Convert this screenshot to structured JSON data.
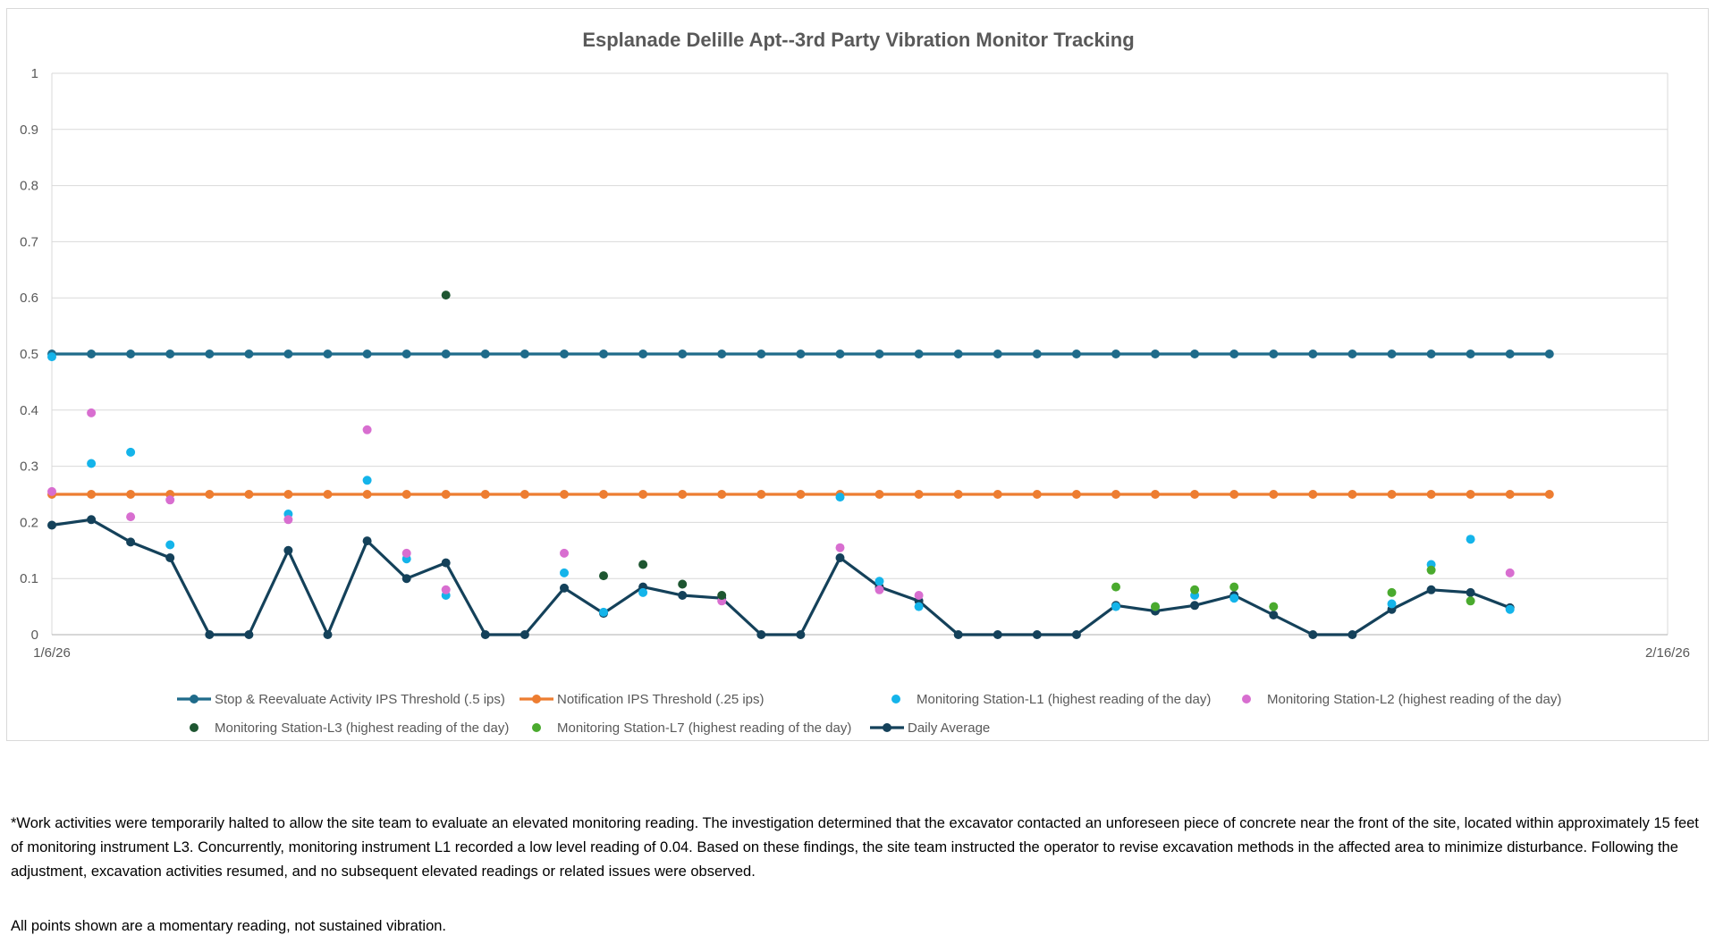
{
  "chart_data": {
    "type": "line",
    "title": "Esplanade Delille Apt--3rd Party Vibration Monitor Tracking",
    "xlabel": "",
    "ylabel": "",
    "ylim": [
      0,
      1
    ],
    "yticks": [
      "0",
      "0.1",
      "0.2",
      "0.3",
      "0.4",
      "0.5",
      "0.6",
      "0.7",
      "0.8",
      "0.9",
      "1"
    ],
    "xrange_days": [
      0,
      41
    ],
    "xticks": [
      {
        "day": 0,
        "label": "1/6/26"
      },
      {
        "day": 41,
        "label": "2/16/26"
      }
    ],
    "grid": true,
    "legend_position": "bottom",
    "series": [
      {
        "name": "Stop & Reevaluate Activity IPS Threshold (.5 ips)",
        "style": "line-marker",
        "color": "#1f6b8a",
        "points": [
          [
            0,
            0.5
          ],
          [
            1,
            0.5
          ],
          [
            2,
            0.5
          ],
          [
            3,
            0.5
          ],
          [
            4,
            0.5
          ],
          [
            5,
            0.5
          ],
          [
            6,
            0.5
          ],
          [
            7,
            0.5
          ],
          [
            8,
            0.5
          ],
          [
            9,
            0.5
          ],
          [
            10,
            0.5
          ],
          [
            11,
            0.5
          ],
          [
            12,
            0.5
          ],
          [
            13,
            0.5
          ],
          [
            14,
            0.5
          ],
          [
            15,
            0.5
          ],
          [
            16,
            0.5
          ],
          [
            17,
            0.5
          ],
          [
            18,
            0.5
          ],
          [
            19,
            0.5
          ],
          [
            20,
            0.5
          ],
          [
            21,
            0.5
          ],
          [
            22,
            0.5
          ],
          [
            23,
            0.5
          ],
          [
            24,
            0.5
          ],
          [
            25,
            0.5
          ],
          [
            26,
            0.5
          ],
          [
            27,
            0.5
          ],
          [
            28,
            0.5
          ],
          [
            29,
            0.5
          ],
          [
            30,
            0.5
          ],
          [
            31,
            0.5
          ],
          [
            32,
            0.5
          ],
          [
            33,
            0.5
          ],
          [
            34,
            0.5
          ],
          [
            35,
            0.5
          ],
          [
            36,
            0.5
          ],
          [
            37,
            0.5
          ],
          [
            38,
            0.5
          ]
        ]
      },
      {
        "name": "Notification IPS Threshold (.25 ips)",
        "style": "line-marker",
        "color": "#ed7d31",
        "points": [
          [
            0,
            0.25
          ],
          [
            1,
            0.25
          ],
          [
            2,
            0.25
          ],
          [
            3,
            0.25
          ],
          [
            4,
            0.25
          ],
          [
            5,
            0.25
          ],
          [
            6,
            0.25
          ],
          [
            7,
            0.25
          ],
          [
            8,
            0.25
          ],
          [
            9,
            0.25
          ],
          [
            10,
            0.25
          ],
          [
            11,
            0.25
          ],
          [
            12,
            0.25
          ],
          [
            13,
            0.25
          ],
          [
            14,
            0.25
          ],
          [
            15,
            0.25
          ],
          [
            16,
            0.25
          ],
          [
            17,
            0.25
          ],
          [
            18,
            0.25
          ],
          [
            19,
            0.25
          ],
          [
            20,
            0.25
          ],
          [
            21,
            0.25
          ],
          [
            22,
            0.25
          ],
          [
            23,
            0.25
          ],
          [
            24,
            0.25
          ],
          [
            25,
            0.25
          ],
          [
            26,
            0.25
          ],
          [
            27,
            0.25
          ],
          [
            28,
            0.25
          ],
          [
            29,
            0.25
          ],
          [
            30,
            0.25
          ],
          [
            31,
            0.25
          ],
          [
            32,
            0.25
          ],
          [
            33,
            0.25
          ],
          [
            34,
            0.25
          ],
          [
            35,
            0.25
          ],
          [
            36,
            0.25
          ],
          [
            37,
            0.25
          ],
          [
            38,
            0.25
          ]
        ]
      },
      {
        "name": "Monitoring Station-L1 (highest reading of the day)",
        "style": "marker",
        "color": "#14b4ea",
        "points": [
          [
            0,
            0.495
          ],
          [
            1,
            0.305
          ],
          [
            2,
            0.325
          ],
          [
            3,
            0.16
          ],
          [
            6,
            0.215
          ],
          [
            8,
            0.275
          ],
          [
            9,
            0.135
          ],
          [
            10,
            0.07
          ],
          [
            13,
            0.11
          ],
          [
            14,
            0.04
          ],
          [
            15,
            0.075
          ],
          [
            20,
            0.245
          ],
          [
            21,
            0.095
          ],
          [
            22,
            0.05
          ],
          [
            27,
            0.05
          ],
          [
            28,
            0.05
          ],
          [
            29,
            0.07
          ],
          [
            30,
            0.065
          ],
          [
            34,
            0.055
          ],
          [
            35,
            0.125
          ],
          [
            36,
            0.17
          ],
          [
            37,
            0.045
          ]
        ]
      },
      {
        "name": "Monitoring Station-L2 (highest reading of the day)",
        "style": "marker",
        "color": "#d86ed0",
        "points": [
          [
            0,
            0.255
          ],
          [
            1,
            0.395
          ],
          [
            2,
            0.21
          ],
          [
            3,
            0.24
          ],
          [
            6,
            0.205
          ],
          [
            8,
            0.365
          ],
          [
            9,
            0.145
          ],
          [
            10,
            0.08
          ],
          [
            13,
            0.145
          ],
          [
            17,
            0.06
          ],
          [
            20,
            0.155
          ],
          [
            21,
            0.08
          ],
          [
            22,
            0.07
          ],
          [
            37,
            0.11
          ]
        ]
      },
      {
        "name": "Monitoring Station-L3 (highest reading of the day)",
        "style": "marker",
        "color": "#1e5631",
        "points": [
          [
            10,
            0.605
          ],
          [
            14,
            0.105
          ],
          [
            15,
            0.125
          ],
          [
            16,
            0.09
          ],
          [
            17,
            0.07
          ]
        ]
      },
      {
        "name": "Monitoring Station-L7 (highest reading of the day)",
        "style": "marker",
        "color": "#4aaa2e",
        "points": [
          [
            27,
            0.085
          ],
          [
            28,
            0.05
          ],
          [
            29,
            0.08
          ],
          [
            30,
            0.085
          ],
          [
            31,
            0.05
          ],
          [
            34,
            0.075
          ],
          [
            35,
            0.115
          ],
          [
            36,
            0.06
          ]
        ]
      },
      {
        "name": "Daily Average",
        "style": "line-marker",
        "color": "#14415a",
        "points": [
          [
            0,
            0.195
          ],
          [
            1,
            0.205
          ],
          [
            2,
            0.165
          ],
          [
            3,
            0.137
          ],
          [
            4,
            0
          ],
          [
            5,
            0
          ],
          [
            6,
            0.15
          ],
          [
            7,
            0
          ],
          [
            8,
            0.167
          ],
          [
            9,
            0.1
          ],
          [
            10,
            0.128
          ],
          [
            11,
            0
          ],
          [
            12,
            0
          ],
          [
            13,
            0.083
          ],
          [
            14,
            0.038
          ],
          [
            15,
            0.085
          ],
          [
            16,
            0.07
          ],
          [
            17,
            0.065
          ],
          [
            18,
            0
          ],
          [
            19,
            0
          ],
          [
            20,
            0.137
          ],
          [
            21,
            0.085
          ],
          [
            22,
            0.06
          ],
          [
            23,
            0
          ],
          [
            24,
            0
          ],
          [
            25,
            0
          ],
          [
            26,
            0
          ],
          [
            27,
            0.052
          ],
          [
            28,
            0.042
          ],
          [
            29,
            0.052
          ],
          [
            30,
            0.07
          ],
          [
            31,
            0.035
          ],
          [
            32,
            0
          ],
          [
            33,
            0
          ],
          [
            34,
            0.045
          ],
          [
            35,
            0.08
          ],
          [
            36,
            0.075
          ],
          [
            37,
            0.048
          ]
        ]
      }
    ]
  },
  "notes": {
    "footnote": "*Work activities were temporarily halted to allow the site team to evaluate an elevated monitoring reading. The investigation determined that the excavator contacted an unforeseen piece of concrete near the front of the site, located within approximately 15 feet of monitoring instrument L3. Concurrently, monitoring instrument L1 recorded a low level reading of 0.04. Based on these findings, the site team instructed the operator to revise excavation methods in the affected area to minimize disturbance. Following the adjustment, excavation activities resumed, and no subsequent elevated readings or related issues were observed.",
    "momentary": "All points shown are a momentary reading, not sustained vibration."
  }
}
